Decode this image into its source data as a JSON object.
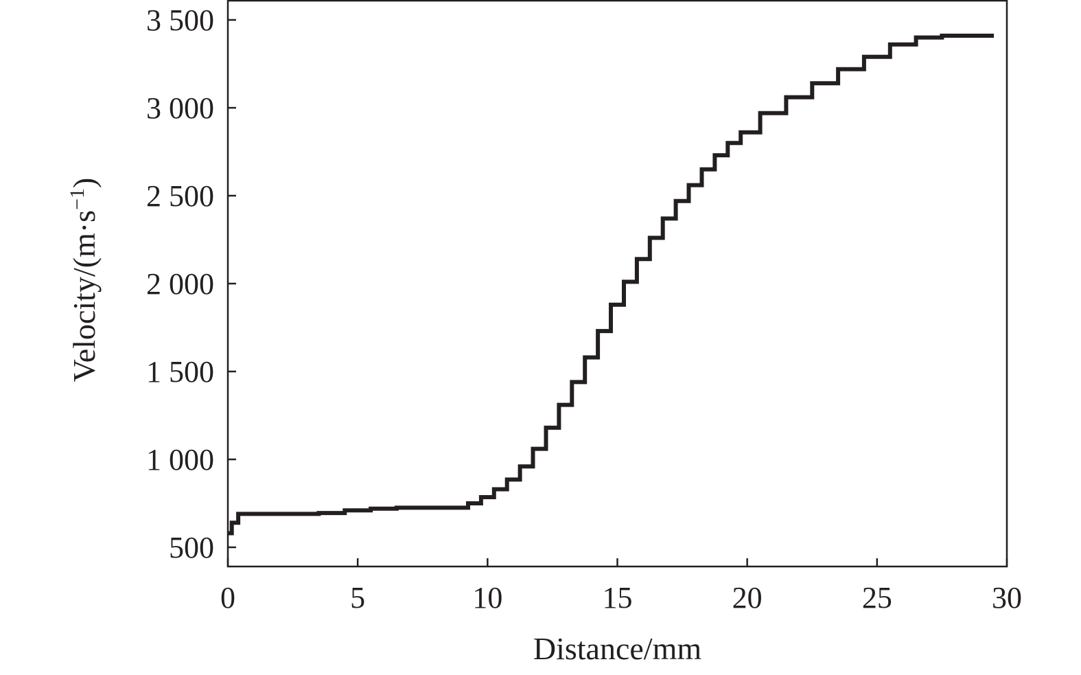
{
  "chart_data": {
    "type": "line",
    "xlabel": "Distance/mm",
    "ylabel": "Velocity/(m·s",
    "ylabel_superscript": "−1",
    "ylabel_close": ")",
    "xlim": [
      0,
      30
    ],
    "ylim": [
      390,
      3500
    ],
    "x_ticks": [
      0,
      5,
      10,
      15,
      20,
      25,
      30
    ],
    "x_tick_labels": [
      "0",
      "5",
      "10",
      "15",
      "20",
      "25",
      "30"
    ],
    "y_ticks": [
      500,
      1000,
      1500,
      2000,
      2500,
      3000,
      3500
    ],
    "y_tick_labels": [
      "500",
      "1 000",
      "1 500",
      "2 000",
      "2 500",
      "3 000",
      "3 500"
    ],
    "grid": false,
    "line_color": "#231f20",
    "series": [
      {
        "x": [
          0,
          0.3,
          0.5,
          1,
          2,
          3,
          4,
          5,
          6,
          7,
          8,
          9,
          9.5,
          10,
          10.5,
          11,
          11.5,
          12,
          12.5,
          13,
          13.5,
          14,
          14.5,
          15,
          15.5,
          16,
          16.5,
          17,
          17.5,
          18,
          18.5,
          19,
          19.5,
          20,
          21,
          22,
          23,
          24,
          25,
          26,
          27,
          28,
          29,
          29.5
        ],
        "values": [
          580,
          640,
          690,
          690,
          690,
          690,
          695,
          710,
          720,
          725,
          725,
          725,
          750,
          785,
          830,
          885,
          960,
          1060,
          1180,
          1310,
          1440,
          1580,
          1730,
          1880,
          2010,
          2140,
          2260,
          2370,
          2470,
          2560,
          2650,
          2730,
          2800,
          2860,
          2970,
          3060,
          3140,
          3220,
          3290,
          3360,
          3400,
          3410,
          3410,
          3410
        ]
      }
    ]
  }
}
